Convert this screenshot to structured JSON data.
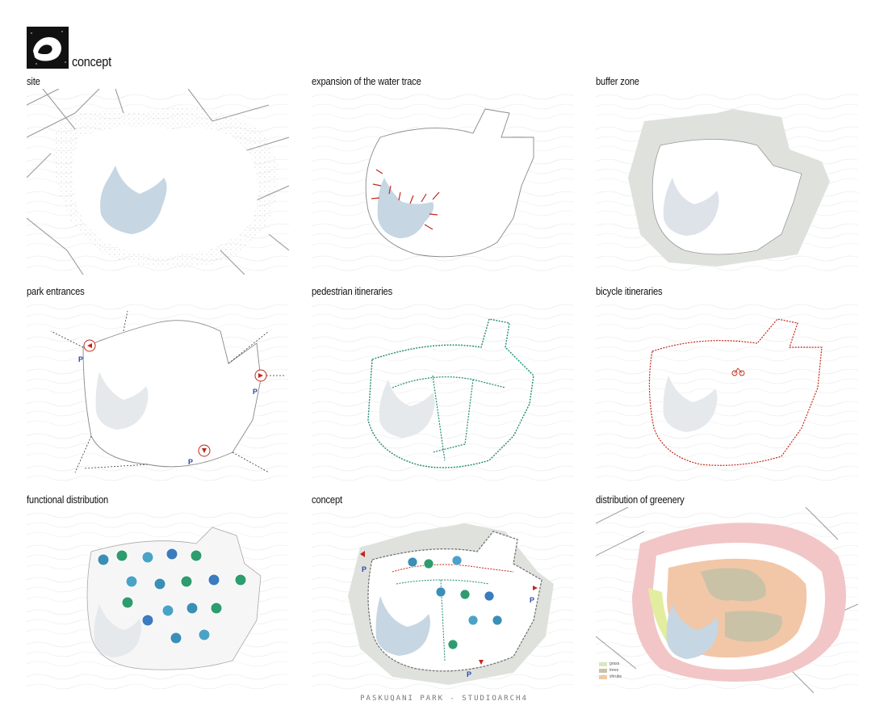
{
  "header": {
    "title": "concept",
    "logo_icon": "logo-icon"
  },
  "panels": [
    {
      "label": "site"
    },
    {
      "label": "expansion of the water trace"
    },
    {
      "label": "buffer zone"
    },
    {
      "label": "park entrances"
    },
    {
      "label": "pedestrian itineraries"
    },
    {
      "label": "bicycle itineraries"
    },
    {
      "label": "functional distribution"
    },
    {
      "label": "concept"
    },
    {
      "label": "distribution of greenery"
    }
  ],
  "legend": {
    "items": [
      {
        "label": "grass",
        "color": "#d6e8c0"
      },
      {
        "label": "trees",
        "color": "#c9c2a6"
      },
      {
        "label": "shrubs",
        "color": "#f1c7a8"
      }
    ]
  },
  "footer": {
    "credit": "PASKUQANI PARK - STUDIOARCH4"
  },
  "colors": {
    "water": "#c6d6e2",
    "buffer": "#dfe2dc",
    "red": "#c2271b",
    "green": "#1f8b73",
    "blue": "#2b4aa8",
    "greenery_outer": "#f2c6c6"
  }
}
